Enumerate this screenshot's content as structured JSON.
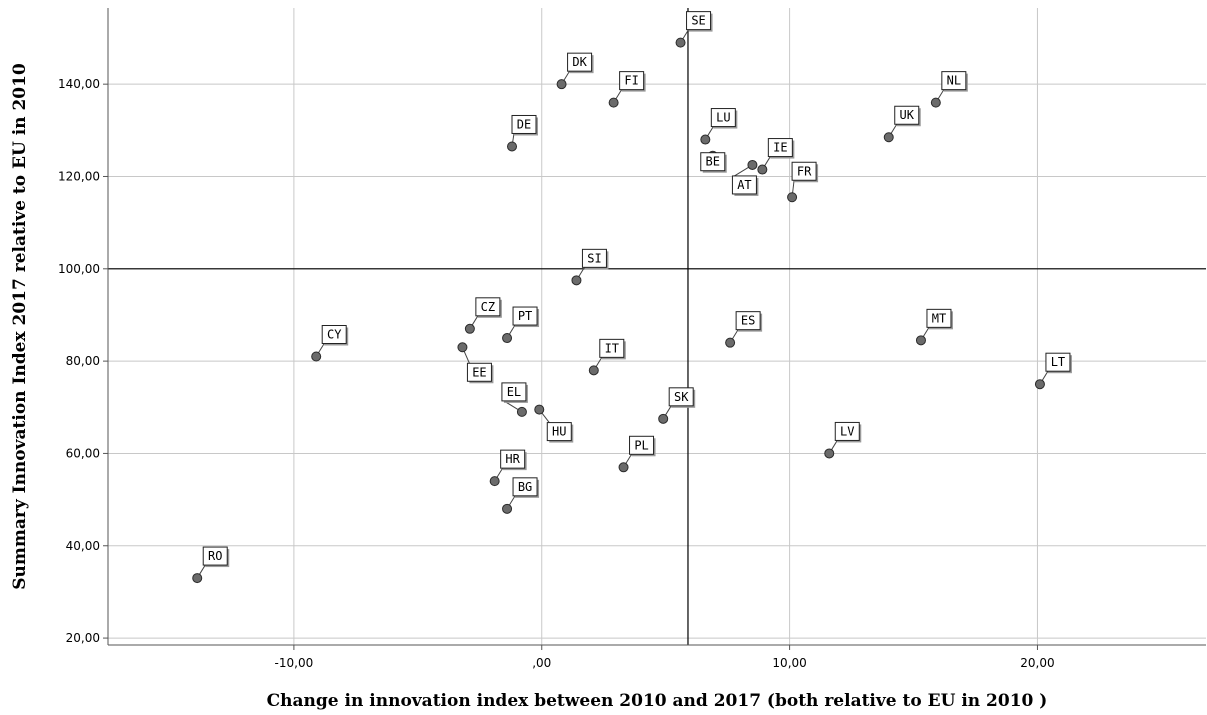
{
  "chart_data": {
    "type": "scatter",
    "title": "",
    "xlabel": "Change in innovation index between 2010 and 2017 (both relative to EU in 2010 )",
    "ylabel": "Summary Innovation Index 2017 relative to EU in 2010",
    "xlim": [
      -17.5,
      26.8
    ],
    "ylim": [
      18.5,
      156.5
    ],
    "x_ticks": [
      -10,
      0,
      10,
      20
    ],
    "x_tick_labels": [
      "-10,00",
      ",00",
      "10,00",
      "20,00"
    ],
    "y_ticks": [
      20,
      40,
      60,
      80,
      100,
      120,
      140
    ],
    "y_tick_labels": [
      "20,00",
      "40,00",
      "60,00",
      "80,00",
      "100,00",
      "120,00",
      "140,00"
    ],
    "grid": true,
    "reference_lines": {
      "x": 5.9,
      "y": 100
    },
    "colors": {
      "point": "#6b6b6b",
      "grid": "#c8c8c8"
    },
    "points": [
      {
        "label": "SE",
        "x": 5.6,
        "y": 149.0
      },
      {
        "label": "DK",
        "x": 0.8,
        "y": 140.0
      },
      {
        "label": "FI",
        "x": 2.9,
        "y": 136.0
      },
      {
        "label": "NL",
        "x": 15.9,
        "y": 136.0
      },
      {
        "label": "UK",
        "x": 14.0,
        "y": 128.5
      },
      {
        "label": "DE",
        "x": -1.2,
        "y": 126.5
      },
      {
        "label": "LU",
        "x": 6.6,
        "y": 128.0
      },
      {
        "label": "BE",
        "x": 6.9,
        "y": 124.5
      },
      {
        "label": "IE",
        "x": 8.9,
        "y": 121.5
      },
      {
        "label": "AT",
        "x": 8.5,
        "y": 122.5
      },
      {
        "label": "FR",
        "x": 10.1,
        "y": 115.5
      },
      {
        "label": "SI",
        "x": 1.4,
        "y": 97.5
      },
      {
        "label": "CZ",
        "x": -2.9,
        "y": 87.0
      },
      {
        "label": "PT",
        "x": -1.4,
        "y": 85.0
      },
      {
        "label": "EE",
        "x": -3.2,
        "y": 83.0
      },
      {
        "label": "CY",
        "x": -9.1,
        "y": 81.0
      },
      {
        "label": "ES",
        "x": 7.6,
        "y": 84.0
      },
      {
        "label": "MT",
        "x": 15.3,
        "y": 84.5
      },
      {
        "label": "IT",
        "x": 2.1,
        "y": 78.0
      },
      {
        "label": "LT",
        "x": 20.1,
        "y": 75.0
      },
      {
        "label": "EL",
        "x": -0.8,
        "y": 69.0
      },
      {
        "label": "HU",
        "x": -0.1,
        "y": 69.5
      },
      {
        "label": "SK",
        "x": 4.9,
        "y": 67.5
      },
      {
        "label": "LV",
        "x": 11.6,
        "y": 60.0
      },
      {
        "label": "PL",
        "x": 3.3,
        "y": 57.0
      },
      {
        "label": "HR",
        "x": -1.9,
        "y": 54.0
      },
      {
        "label": "BG",
        "x": -1.4,
        "y": 48.0
      },
      {
        "label": "RO",
        "x": -13.9,
        "y": 33.0
      }
    ]
  }
}
